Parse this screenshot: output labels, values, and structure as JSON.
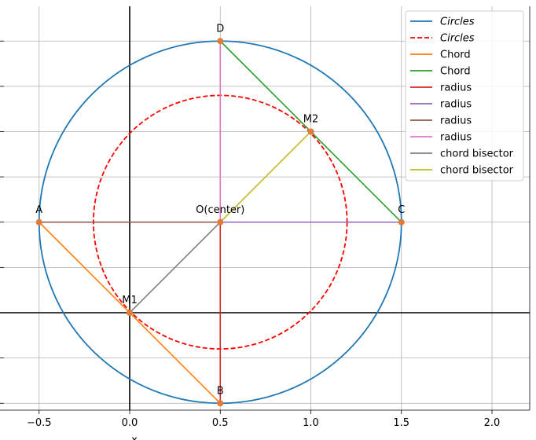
{
  "chart_data": {
    "type": "line",
    "title": "",
    "xlabel": "x",
    "ylabel": "",
    "xlim": [
      -0.7,
      2.2
    ],
    "ylim": [
      -0.55,
      1.7
    ],
    "x_ticks": [
      -0.5,
      0.0,
      0.5,
      1.0,
      1.5,
      2.0
    ],
    "x_tick_labels": [
      "−0.5",
      "0.0",
      "0.5",
      "1.0",
      "1.5",
      "2.0"
    ],
    "y_gridlines": [
      -0.5,
      -0.25,
      0.0,
      0.25,
      0.5,
      0.75,
      1.0,
      1.25,
      1.5
    ],
    "grid": true,
    "legend_position": "top-right",
    "circles": [
      {
        "legend": "Circles",
        "center": [
          0.5,
          0.5
        ],
        "radius": 1.0,
        "style": "solid",
        "color": "#1f77b4"
      },
      {
        "legend": "Circles",
        "center": [
          0.5,
          0.5
        ],
        "radius": 0.7,
        "style": "dashed",
        "color": "#ff0000"
      }
    ],
    "series": [
      {
        "legend": "Chord",
        "color": "#ff7f0e",
        "x": [
          -0.5,
          0.5
        ],
        "y": [
          0.5,
          -0.5
        ]
      },
      {
        "legend": "Chord",
        "color": "#2ca02c",
        "x": [
          0.5,
          1.5
        ],
        "y": [
          1.5,
          0.5
        ]
      },
      {
        "legend": "radius",
        "color": "#d62728",
        "x": [
          0.5,
          0.5
        ],
        "y": [
          0.5,
          -0.5
        ]
      },
      {
        "legend": "radius",
        "color": "#9467bd",
        "x": [
          0.5,
          1.5
        ],
        "y": [
          0.5,
          0.5
        ]
      },
      {
        "legend": "radius",
        "color": "#8c564b",
        "x": [
          0.5,
          -0.5
        ],
        "y": [
          0.5,
          0.5
        ]
      },
      {
        "legend": "radius",
        "color": "#e377c2",
        "x": [
          0.5,
          0.5
        ],
        "y": [
          0.5,
          1.5
        ]
      },
      {
        "legend": "chord bisector",
        "color": "#7f7f7f",
        "x": [
          0.5,
          0.0
        ],
        "y": [
          0.5,
          0.0
        ]
      },
      {
        "legend": "chord bisector",
        "color": "#bcbd22",
        "x": [
          0.5,
          1.0
        ],
        "y": [
          0.5,
          1.0
        ]
      }
    ],
    "points": [
      {
        "label": "A",
        "x": -0.5,
        "y": 0.5
      },
      {
        "label": "B",
        "x": 0.5,
        "y": -0.5
      },
      {
        "label": "C",
        "x": 1.5,
        "y": 0.5
      },
      {
        "label": "D",
        "x": 0.5,
        "y": 1.5
      },
      {
        "label": "O(center)",
        "x": 0.5,
        "y": 0.5
      },
      {
        "label": "M1",
        "x": 0.0,
        "y": 0.0
      },
      {
        "label": "M2",
        "x": 1.0,
        "y": 1.0
      }
    ],
    "point_color": "#e07b39"
  }
}
